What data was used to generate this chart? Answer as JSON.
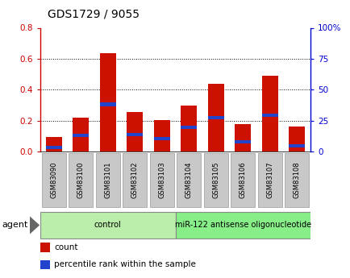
{
  "title": "GDS1729 / 9055",
  "categories": [
    "GSM83090",
    "GSM83100",
    "GSM83101",
    "GSM83102",
    "GSM83103",
    "GSM83104",
    "GSM83105",
    "GSM83106",
    "GSM83107",
    "GSM83108"
  ],
  "red_values": [
    0.095,
    0.22,
    0.635,
    0.255,
    0.205,
    0.295,
    0.44,
    0.175,
    0.49,
    0.16
  ],
  "blue_values": [
    0.025,
    0.105,
    0.305,
    0.108,
    0.083,
    0.155,
    0.22,
    0.062,
    0.235,
    0.038
  ],
  "left_ylim": [
    0,
    0.8
  ],
  "right_ylim": [
    0,
    100
  ],
  "left_yticks": [
    0.0,
    0.2,
    0.4,
    0.6,
    0.8
  ],
  "right_yticks": [
    0,
    25,
    50,
    75,
    100
  ],
  "right_yticklabels": [
    "0",
    "25",
    "50",
    "75",
    "100%"
  ],
  "left_color": "#cc0000",
  "right_color": "#0000cc",
  "bar_red": "#cc1100",
  "bar_blue": "#2244cc",
  "groups": [
    {
      "label": "control",
      "start": 0,
      "end": 5,
      "color": "#bbeeaa"
    },
    {
      "label": "miR-122 antisense oligonucleotide",
      "start": 5,
      "end": 10,
      "color": "#88ee88"
    }
  ],
  "agent_label": "agent",
  "bar_width": 0.6,
  "background_color": "#ffffff",
  "plot_bg": "#ffffff",
  "tick_label_bg": "#c8c8c8",
  "legend_items": [
    {
      "label": "count",
      "color": "#cc1100"
    },
    {
      "label": "percentile rank within the sample",
      "color": "#2244cc"
    }
  ],
  "blue_bar_height": 0.022
}
